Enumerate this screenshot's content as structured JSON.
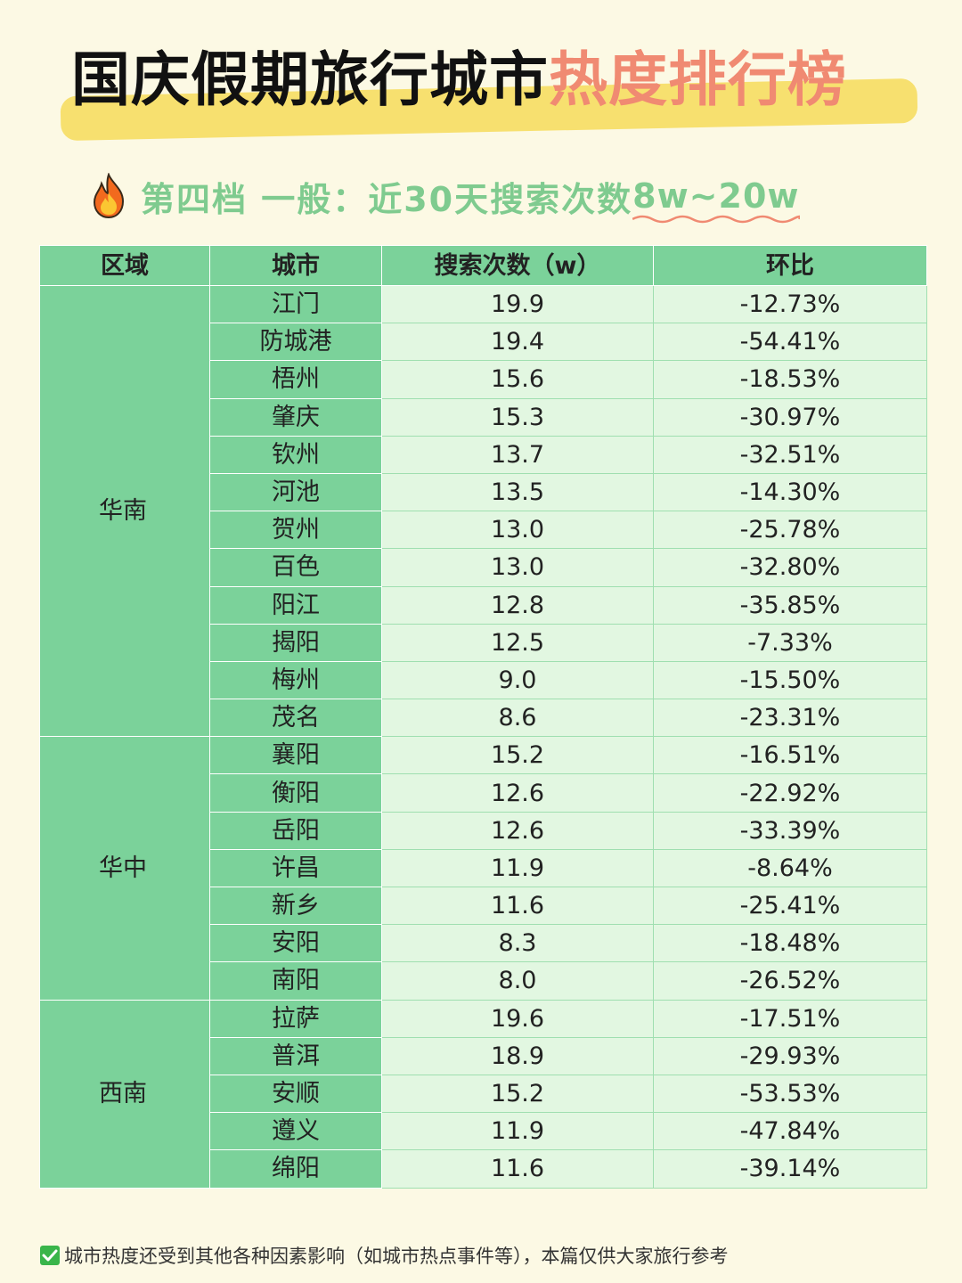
{
  "header": {
    "title_main": "国庆假期旅行城市",
    "title_accent": "热度排行榜"
  },
  "subtitle": {
    "icon": "flame-icon",
    "tier": "第四档  一般：近30天搜索次数",
    "range": "8w~20w"
  },
  "colors": {
    "background": "#fcf9e4",
    "title_highlight": "#f7e06f",
    "title_accent": "#f08a72",
    "subtitle_green": "#7fcb8f",
    "table_header": "#7bd29a",
    "table_value_cell": "#e2f7e1"
  },
  "table": {
    "headers": [
      "区域",
      "城市",
      "搜索次数（w）",
      "环比"
    ],
    "groups": [
      {
        "region": "华南",
        "rows": [
          {
            "city": "江门",
            "search": "19.9",
            "change": "-12.73%"
          },
          {
            "city": "防城港",
            "search": "19.4",
            "change": "-54.41%"
          },
          {
            "city": "梧州",
            "search": "15.6",
            "change": "-18.53%"
          },
          {
            "city": "肇庆",
            "search": "15.3",
            "change": "-30.97%"
          },
          {
            "city": "钦州",
            "search": "13.7",
            "change": "-32.51%"
          },
          {
            "city": "河池",
            "search": "13.5",
            "change": "-14.30%"
          },
          {
            "city": "贺州",
            "search": "13.0",
            "change": "-25.78%"
          },
          {
            "city": "百色",
            "search": "13.0",
            "change": "-32.80%"
          },
          {
            "city": "阳江",
            "search": "12.8",
            "change": "-35.85%"
          },
          {
            "city": "揭阳",
            "search": "12.5",
            "change": "-7.33%"
          },
          {
            "city": "梅州",
            "search": "9.0",
            "change": "-15.50%"
          },
          {
            "city": "茂名",
            "search": "8.6",
            "change": "-23.31%"
          }
        ]
      },
      {
        "region": "华中",
        "rows": [
          {
            "city": "襄阳",
            "search": "15.2",
            "change": "-16.51%"
          },
          {
            "city": "衡阳",
            "search": "12.6",
            "change": "-22.92%"
          },
          {
            "city": "岳阳",
            "search": "12.6",
            "change": "-33.39%"
          },
          {
            "city": "许昌",
            "search": "11.9",
            "change": "-8.64%"
          },
          {
            "city": "新乡",
            "search": "11.6",
            "change": "-25.41%"
          },
          {
            "city": "安阳",
            "search": "8.3",
            "change": "-18.48%"
          },
          {
            "city": "南阳",
            "search": "8.0",
            "change": "-26.52%"
          }
        ]
      },
      {
        "region": "西南",
        "rows": [
          {
            "city": "拉萨",
            "search": "19.6",
            "change": "-17.51%"
          },
          {
            "city": "普洱",
            "search": "18.9",
            "change": "-29.93%"
          },
          {
            "city": "安顺",
            "search": "15.2",
            "change": "-53.53%"
          },
          {
            "city": "遵义",
            "search": "11.9",
            "change": "-47.84%"
          },
          {
            "city": "绵阳",
            "search": "11.6",
            "change": "-39.14%"
          }
        ]
      }
    ]
  },
  "footer": {
    "icon": "checkbox-checked-icon",
    "note": "城市热度还受到其他各种因素影响（如城市热点事件等），本篇仅供大家旅行参考"
  }
}
